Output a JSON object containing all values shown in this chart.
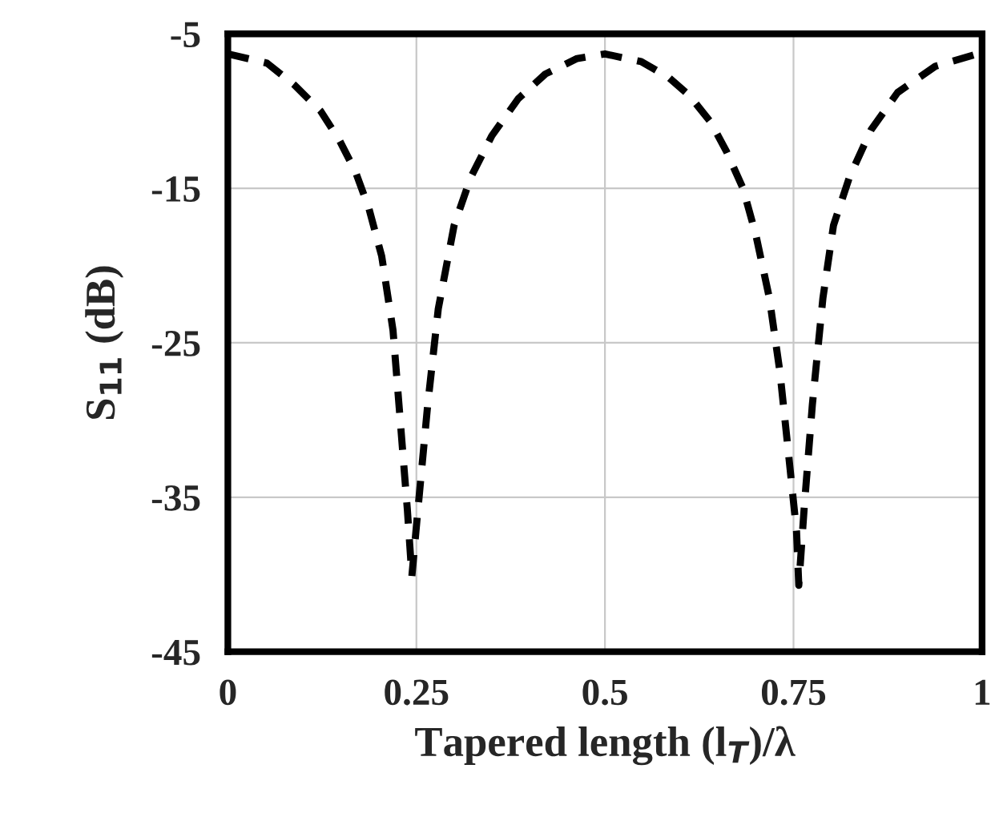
{
  "chart_data": {
    "type": "line",
    "xlabel": "Tapered length (l$_{T}$)/λ",
    "ylabel": "S$_{11}$ (dB)",
    "x": [
      0,
      0.052,
      0.088,
      0.123,
      0.148,
      0.169,
      0.187,
      0.204,
      0.219,
      0.229,
      0.238,
      0.244,
      0.252,
      0.265,
      0.279,
      0.3,
      0.322,
      0.35,
      0.385,
      0.421,
      0.463,
      0.5,
      0.548,
      0.584,
      0.612,
      0.64,
      0.661,
      0.683,
      0.7,
      0.718,
      0.732,
      0.743,
      0.754,
      0.757,
      0.764,
      0.775,
      0.789,
      0.803,
      0.824,
      0.853,
      0.888,
      0.938,
      0.994
    ],
    "series": [
      {
        "color": "#000000",
        "values": [
          -6.3,
          -6.9,
          -8.3,
          -10.0,
          -11.9,
          -13.9,
          -16.3,
          -19.4,
          -24.2,
          -30.3,
          -35.8,
          -40.1,
          -35.8,
          -29.0,
          -22.8,
          -17.4,
          -14.3,
          -11.6,
          -9.2,
          -7.6,
          -6.6,
          -6.3,
          -6.8,
          -7.8,
          -9.0,
          -10.7,
          -12.6,
          -15.0,
          -18.0,
          -22.1,
          -26.9,
          -32.0,
          -37.2,
          -40.7,
          -35.8,
          -29.0,
          -22.1,
          -17.4,
          -14.3,
          -11.2,
          -8.8,
          -7.1,
          -6.3
        ]
      }
    ],
    "xlim": [
      0,
      1
    ],
    "xticks": [
      0,
      {
        "value": 0.25,
        "label": "0.25"
      },
      {
        "value": 0.5,
        "label": "0.5"
      },
      {
        "value": 0.75,
        "label": "0.75"
      },
      1
    ],
    "ylim": [
      -45,
      -5
    ],
    "yticks": [
      -45,
      -35,
      -25,
      -15,
      -5
    ],
    "grid": true,
    "line_style": "dashed",
    "marker": "none"
  }
}
